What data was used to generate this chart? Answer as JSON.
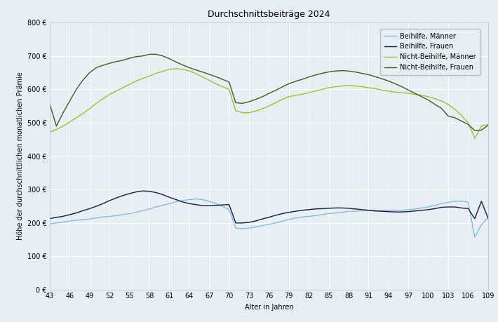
{
  "title": "Durchschnittsbeiträge 2024",
  "xlabel": "Alter in Jahren",
  "ylabel": "Höhe der durchschnittlichen monatlichen Prämie",
  "ylim": [
    0,
    800
  ],
  "yticks": [
    0,
    100,
    200,
    300,
    400,
    500,
    600,
    700,
    800
  ],
  "x_start": 43,
  "x_end": 109,
  "xticks": [
    43,
    46,
    49,
    52,
    55,
    58,
    61,
    64,
    67,
    70,
    73,
    76,
    79,
    82,
    85,
    88,
    91,
    94,
    97,
    100,
    103,
    106,
    109
  ],
  "series": {
    "beihilfe_maenner": {
      "label": "Beihilfe, Männer",
      "color": "#7fbfdf",
      "linewidth": 1.0,
      "values": [
        197,
        200,
        203,
        206,
        208,
        210,
        212,
        215,
        218,
        220,
        222,
        225,
        228,
        232,
        237,
        242,
        248,
        253,
        258,
        263,
        267,
        270,
        272,
        270,
        265,
        258,
        250,
        240,
        185,
        183,
        185,
        188,
        192,
        196,
        200,
        205,
        210,
        215,
        218,
        220,
        222,
        225,
        228,
        230,
        232,
        235,
        235,
        237,
        238,
        238,
        237,
        238,
        237,
        238,
        240,
        242,
        245,
        248,
        253,
        258,
        262,
        265,
        265,
        263,
        157,
        195,
        215
      ]
    },
    "beihilfe_frauen": {
      "label": "Beihilfe, Frauen",
      "color": "#1a1a35",
      "linewidth": 1.0,
      "values": [
        213,
        217,
        220,
        225,
        230,
        237,
        243,
        250,
        258,
        267,
        275,
        282,
        288,
        293,
        296,
        295,
        291,
        285,
        277,
        270,
        263,
        258,
        255,
        252,
        252,
        253,
        254,
        255,
        200,
        200,
        202,
        206,
        212,
        217,
        223,
        228,
        232,
        235,
        238,
        240,
        242,
        243,
        244,
        245,
        245,
        244,
        242,
        240,
        238,
        236,
        235,
        234,
        233,
        233,
        234,
        236,
        238,
        240,
        243,
        247,
        248,
        248,
        245,
        243,
        213,
        265,
        215
      ]
    },
    "nicht_beihilfe_maenner": {
      "label": "Nicht-Beihilfe, Männer",
      "color": "#9bc03a",
      "linewidth": 1.0,
      "values": [
        472,
        480,
        490,
        502,
        515,
        528,
        542,
        558,
        572,
        585,
        595,
        605,
        615,
        625,
        633,
        640,
        648,
        654,
        660,
        662,
        660,
        655,
        647,
        637,
        627,
        617,
        608,
        600,
        536,
        530,
        530,
        535,
        542,
        550,
        560,
        570,
        578,
        582,
        585,
        590,
        595,
        600,
        605,
        608,
        610,
        612,
        610,
        608,
        605,
        602,
        598,
        595,
        592,
        590,
        588,
        585,
        582,
        578,
        572,
        565,
        555,
        540,
        522,
        500,
        453,
        490,
        495
      ]
    },
    "nicht_beihilfe_frauen": {
      "label": "Nicht-Beihilfe, Frauen",
      "color": "#4a5520",
      "linewidth": 1.0,
      "values": [
        555,
        490,
        530,
        565,
        600,
        628,
        650,
        665,
        672,
        678,
        683,
        687,
        693,
        698,
        700,
        705,
        705,
        700,
        692,
        682,
        673,
        665,
        658,
        652,
        645,
        638,
        630,
        622,
        560,
        558,
        563,
        570,
        578,
        588,
        597,
        607,
        617,
        624,
        630,
        637,
        643,
        648,
        652,
        655,
        656,
        655,
        652,
        648,
        644,
        638,
        632,
        625,
        617,
        608,
        598,
        588,
        578,
        568,
        555,
        543,
        520,
        515,
        505,
        495,
        477,
        478,
        492
      ]
    }
  },
  "legend_loc": "upper right",
  "bg_color": "#e8eef4",
  "grid_color": "#ffffff",
  "spine_color": "#bbbbbb",
  "title_fontsize": 9,
  "label_fontsize": 7,
  "tick_fontsize": 7,
  "legend_fontsize": 7
}
